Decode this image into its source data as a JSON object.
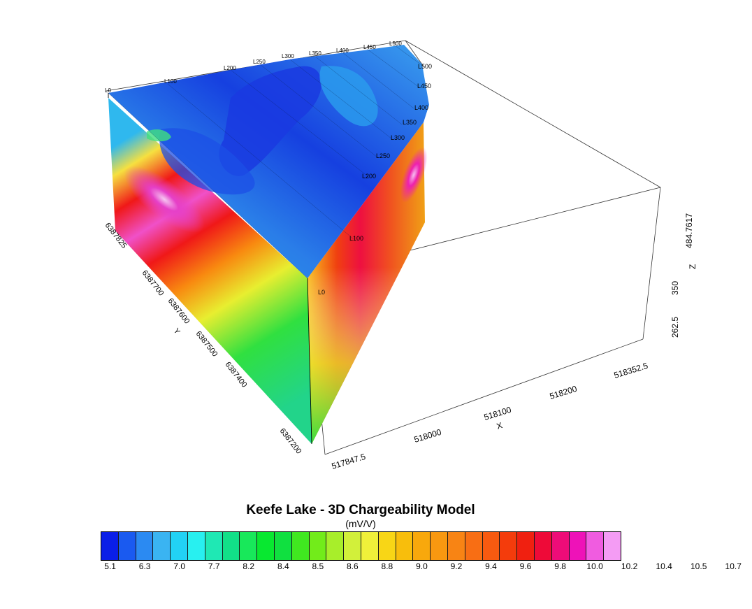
{
  "title": "Keefe Lake - 3D Chargeability Model",
  "unit": "(mV/V)",
  "axes": {
    "x_name": "X",
    "y_name": "Y",
    "z_name": "Z",
    "x_ticks": [
      "517847.5",
      "518000",
      "518100",
      "518200",
      "518352.5"
    ],
    "y_ticks": [
      "6387825",
      "6387700",
      "6387600",
      "6387500",
      "6387400",
      "6387200"
    ],
    "z_ticks": [
      "262.5",
      "350",
      "484.7617"
    ]
  },
  "survey_lines": {
    "top_edge": [
      "L0",
      "L100",
      "L200",
      "L250",
      "L300",
      "L350",
      "L400",
      "L450",
      "L500"
    ],
    "right_edge": [
      "L500",
      "L450",
      "L400",
      "L350",
      "L300",
      "L250",
      "L200",
      "L100",
      "L0"
    ]
  },
  "legend": {
    "tick_labels": [
      "5.1",
      "6.3",
      "7.0",
      "7.7",
      "8.2",
      "8.4",
      "8.5",
      "8.6",
      "8.8",
      "9.0",
      "9.2",
      "9.4",
      "9.6",
      "9.8",
      "10.0",
      "10.2",
      "10.4",
      "10.5",
      "10.7"
    ],
    "colors": [
      "#0a1ee8",
      "#1a5af0",
      "#2b8af2",
      "#3ab4f2",
      "#22d2f5",
      "#28f0f0",
      "#1fe8b4",
      "#12e088",
      "#18e85a",
      "#08e830",
      "#10e040",
      "#40e820",
      "#72ec1a",
      "#a8ee2a",
      "#d2f03a",
      "#f0f03a",
      "#f8d616",
      "#f8be0c",
      "#f8a80c",
      "#f89810",
      "#f88414",
      "#f86e14",
      "#f85a10",
      "#f43c0c",
      "#f02010",
      "#ee0a38",
      "#ee0c78",
      "#ee12b8",
      "#f05ce0",
      "#f49cf4"
    ]
  }
}
